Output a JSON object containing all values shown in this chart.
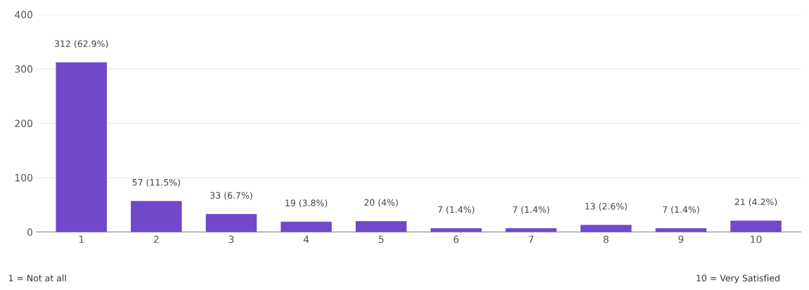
{
  "chart_data": {
    "type": "bar",
    "categories": [
      "1",
      "2",
      "3",
      "4",
      "5",
      "6",
      "7",
      "8",
      "9",
      "10"
    ],
    "values": [
      312,
      57,
      33,
      19,
      20,
      7,
      7,
      13,
      7,
      21
    ],
    "value_labels": [
      "312 (62.9%)",
      "57 (11.5%)",
      "33 (6.7%)",
      "19 (3.8%)",
      "20 (4%)",
      "7 (1.4%)",
      "7 (1.4%)",
      "13 (2.6%)",
      "7 (1.4%)",
      "21 (4.2%)"
    ],
    "color": "#6f49c9",
    "ylim": [
      0,
      400
    ],
    "yticks": [
      0,
      100,
      200,
      300,
      400
    ],
    "grid": "y",
    "annotations": [
      "1 = Not at all",
      "10 = Very Satisfied"
    ]
  }
}
